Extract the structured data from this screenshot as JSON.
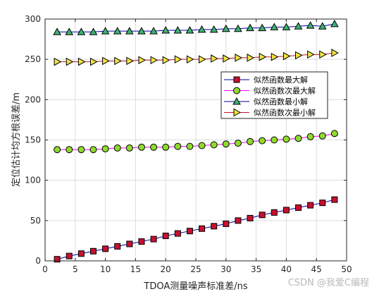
{
  "watermark": "CSDN @我爱C编程",
  "chart_data": {
    "type": "line",
    "xlabel": "TDOA测量噪声标准差/ns",
    "ylabel": "定位估计均方根误差/m",
    "xlim": [
      0,
      50
    ],
    "ylim": [
      0,
      300
    ],
    "xticks": [
      0,
      5,
      10,
      15,
      20,
      25,
      30,
      35,
      40,
      45,
      50
    ],
    "yticks": [
      0,
      50,
      100,
      150,
      200,
      250,
      300
    ],
    "grid": true,
    "legend_position": "inside-right",
    "x": [
      2,
      4,
      6,
      8,
      10,
      12,
      14,
      16,
      18,
      20,
      22,
      24,
      26,
      28,
      30,
      32,
      34,
      36,
      38,
      40,
      42,
      44,
      46,
      48
    ],
    "series": [
      {
        "name": "似然函数最大解",
        "marker": "square",
        "line_color": "#0000a0",
        "marker_fill": "#c8102e",
        "values": [
          2,
          6,
          9,
          12,
          15,
          18,
          21,
          24,
          27,
          31,
          34,
          37,
          40,
          43,
          46,
          50,
          53,
          57,
          60,
          63,
          66,
          69,
          72,
          76
        ]
      },
      {
        "name": "似然函数次最大解",
        "marker": "circle",
        "line_color": "#ff00ff",
        "marker_fill": "#8fdb2d",
        "values": [
          138,
          138,
          138,
          138,
          139,
          140,
          140,
          141,
          141,
          141,
          142,
          142,
          143,
          144,
          145,
          146,
          148,
          149,
          150,
          151,
          152,
          154,
          155,
          158
        ]
      },
      {
        "name": "似然函数最小解",
        "marker": "triangle-up",
        "line_color": "#0000a0",
        "marker_fill": "#3cb371",
        "values": [
          284,
          284,
          284,
          284,
          285,
          285,
          285,
          285,
          285,
          286,
          286,
          286,
          287,
          287,
          288,
          288,
          289,
          289,
          290,
          290,
          291,
          292,
          291,
          294
        ]
      },
      {
        "name": "似然函数次最小解",
        "marker": "triangle-right",
        "line_color": "#c8102e",
        "marker_fill": "#f0e442",
        "values": [
          247,
          247,
          247,
          247,
          248,
          248,
          248,
          249,
          249,
          249,
          250,
          250,
          250,
          251,
          251,
          252,
          252,
          253,
          253,
          254,
          255,
          256,
          256,
          258
        ]
      }
    ]
  }
}
